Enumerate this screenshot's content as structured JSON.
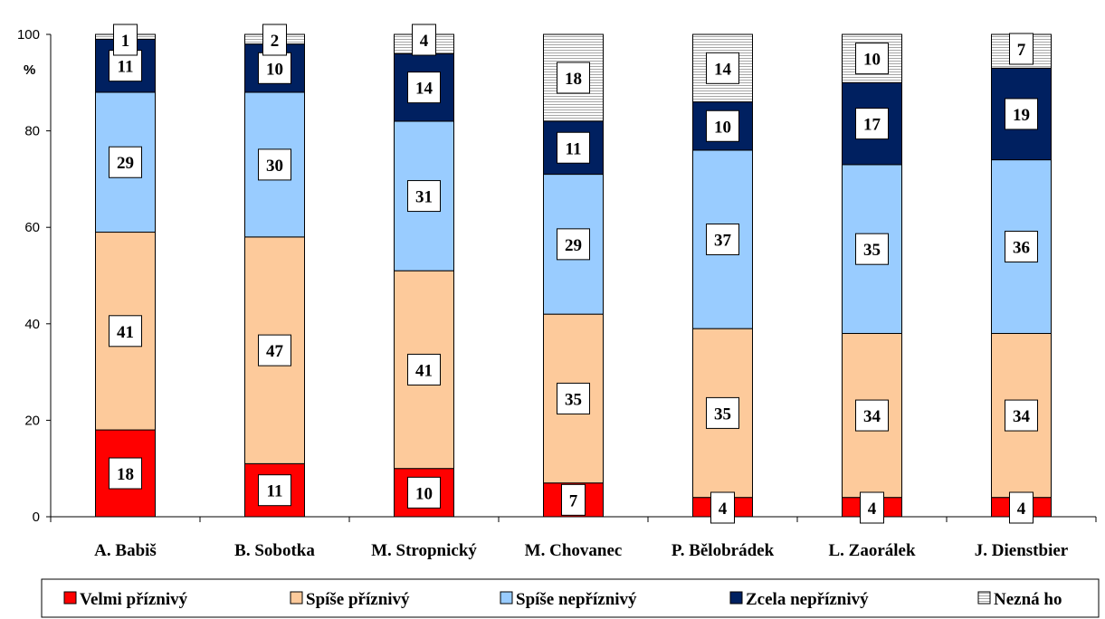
{
  "chart_data": {
    "type": "bar",
    "stacked": true,
    "ylabel": "%",
    "ylim": [
      0,
      100
    ],
    "yticks": [
      "0",
      "20",
      "40",
      "60",
      "80",
      "100"
    ],
    "grid": false,
    "legend_position": "bottom",
    "categories": [
      "A. Babiš",
      "B. Sobotka",
      "M. Stropnický",
      "M. Chovanec",
      "P. Bělobrádek",
      "L. Zaorálek",
      "J. Dienstbier"
    ],
    "series": [
      {
        "name": "Velmi příznivý",
        "color": "#ff0000",
        "values": [
          18,
          11,
          10,
          7,
          4,
          4,
          4
        ]
      },
      {
        "name": "Spíše příznivý",
        "color": "#fdca9b",
        "values": [
          41,
          47,
          41,
          35,
          35,
          34,
          34
        ]
      },
      {
        "name": "Spíše nepříznivý",
        "color": "#99ccff",
        "values": [
          29,
          30,
          31,
          29,
          37,
          35,
          36
        ]
      },
      {
        "name": "Zcela nepříznivý",
        "color": "#002060",
        "values": [
          11,
          10,
          14,
          11,
          10,
          17,
          19
        ]
      },
      {
        "name": "Nezná ho",
        "color": "#e8e8e8",
        "pattern": "horizontal-lines",
        "values": [
          1,
          2,
          4,
          18,
          14,
          10,
          7
        ]
      }
    ]
  }
}
